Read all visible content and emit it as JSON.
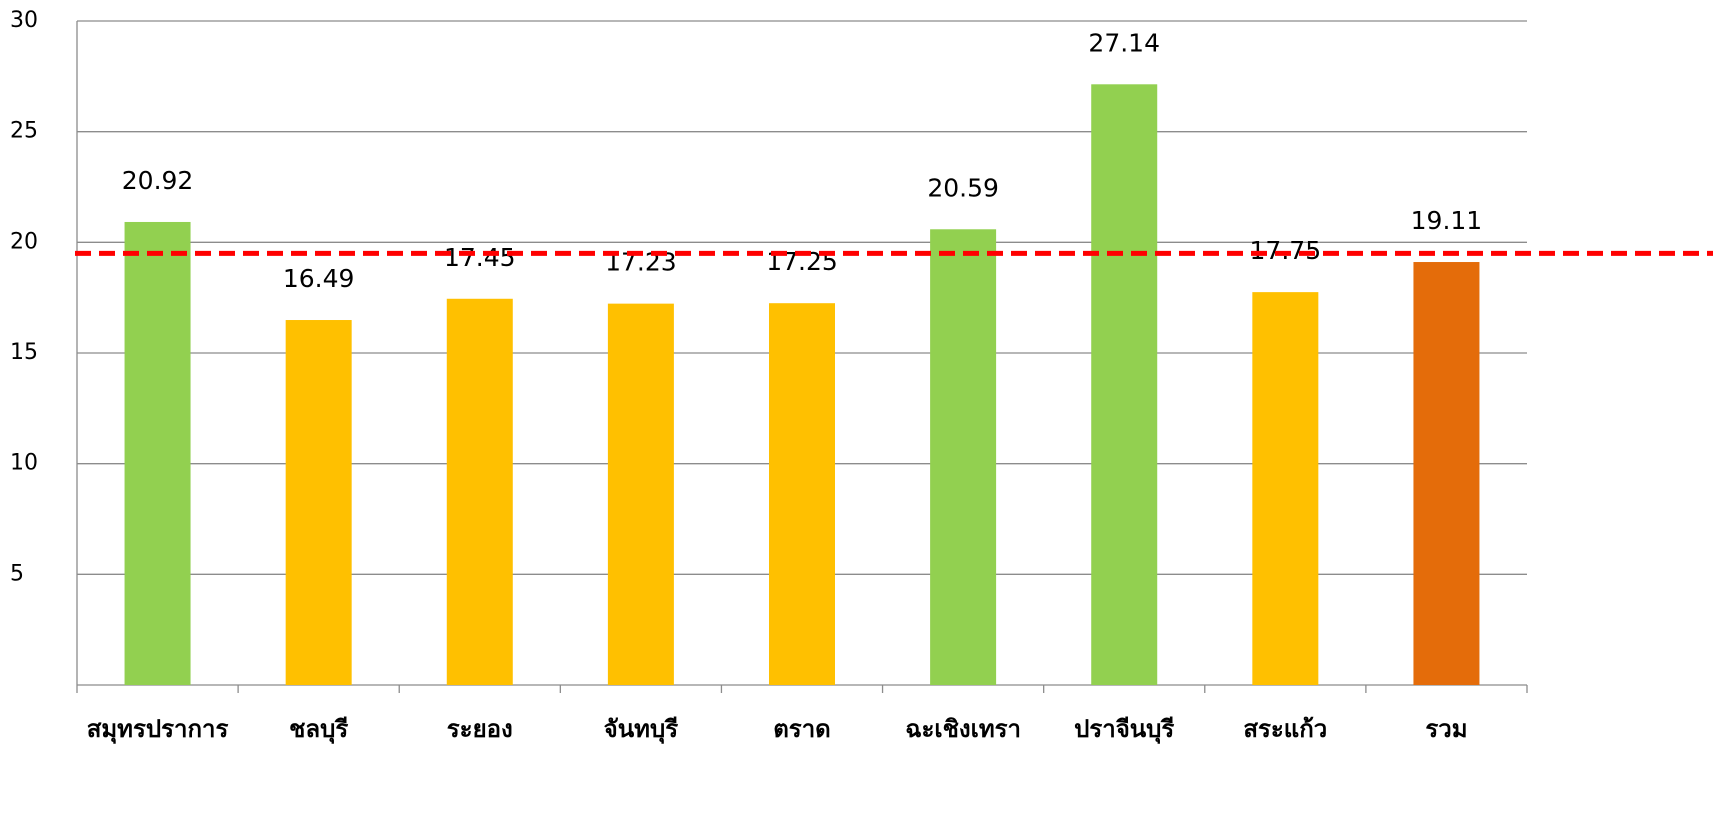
{
  "chart_data": {
    "type": "bar",
    "categories": [
      "สมุทรปราการ",
      "ชลบุรี",
      "ระยอง",
      "จันทบุรี",
      "ตราด",
      "ฉะเชิงเทรา",
      "ปราจีนบุรี",
      "สระแก้ว",
      "รวม"
    ],
    "values": [
      20.92,
      16.49,
      17.45,
      17.23,
      17.25,
      20.59,
      27.14,
      17.75,
      19.11
    ],
    "colors": [
      "#92d050",
      "#ffc000",
      "#ffc000",
      "#ffc000",
      "#ffc000",
      "#92d050",
      "#92d050",
      "#ffc000",
      "#e46c0a"
    ],
    "ylim": [
      0,
      30
    ],
    "yticks": [
      5,
      10,
      15,
      20,
      25,
      30
    ],
    "grid": true,
    "reference_line": {
      "value": 19.5,
      "color": "#ff0000"
    }
  }
}
